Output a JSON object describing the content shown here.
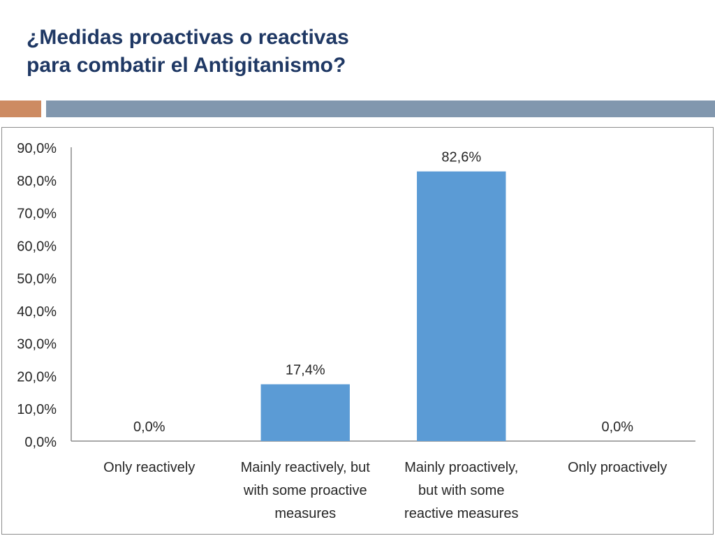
{
  "slide": {
    "title_lines": [
      "¿Medidas proactivas o reactivas",
      "para combatir el Antigitanismo?"
    ],
    "accent_colors": [
      "#cd8b62",
      "#8197ae"
    ],
    "title_color": "#1f3864"
  },
  "chart_data": {
    "type": "bar",
    "title": "",
    "xlabel": "",
    "ylabel": "",
    "categories": [
      [
        "Only reactively"
      ],
      [
        "Mainly reactively, but",
        "with some proactive",
        "measures"
      ],
      [
        "Mainly proactively,",
        "but with some",
        "reactive measures"
      ],
      [
        "Only proactively"
      ]
    ],
    "values": [
      0.0,
      17.4,
      82.6,
      0.0
    ],
    "value_labels": [
      "0,0%",
      "17,4%",
      "82,6%",
      "0,0%"
    ],
    "ylim": [
      0,
      90
    ],
    "yticks": [
      0,
      10,
      20,
      30,
      40,
      50,
      60,
      70,
      80,
      90
    ],
    "ytick_labels": [
      "0,0%",
      "10,0%",
      "20,0%",
      "30,0%",
      "40,0%",
      "50,0%",
      "60,0%",
      "70,0%",
      "80,0%",
      "90,0%"
    ],
    "bar_color": "#5b9bd5",
    "axis_color": "#8c8c8c",
    "grid": false,
    "legend": "none"
  }
}
